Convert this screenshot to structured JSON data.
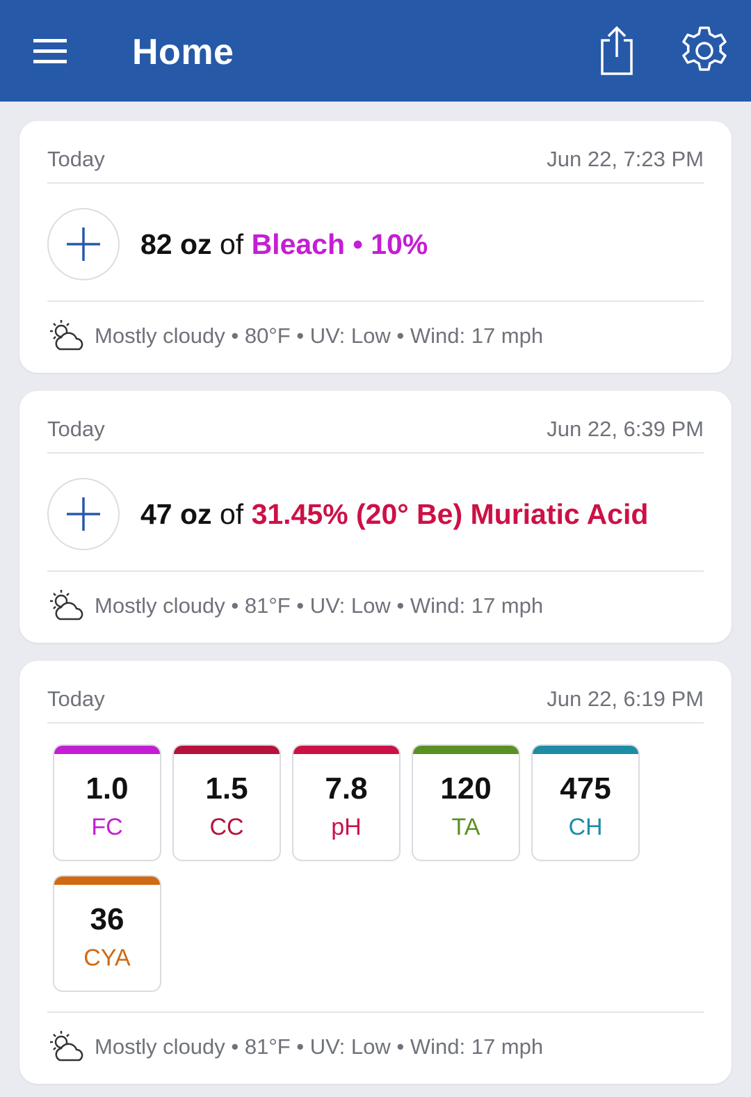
{
  "appbar": {
    "title": "Home",
    "menu_icon": "hamburger-icon",
    "share_icon": "share-icon",
    "settings_icon": "gear-icon"
  },
  "cards": [
    {
      "day": "Today",
      "timestamp": "Jun 22, 7:23 PM",
      "dose": {
        "amount": "82 oz",
        "of": "of",
        "chemical": "Bleach • 10%",
        "chem_color": "#c41ed4"
      },
      "weather": "Mostly cloudy • 80°F • UV: Low • Wind: 17 mph"
    },
    {
      "day": "Today",
      "timestamp": "Jun 22, 6:39 PM",
      "dose": {
        "amount": "47 oz",
        "of": "of",
        "chemical": "31.45% (20° Be) Muriatic Acid",
        "chem_color": "#cc1147"
      },
      "weather": "Mostly cloudy • 81°F • UV: Low • Wind: 17 mph"
    },
    {
      "day": "Today",
      "timestamp": "Jun 22, 6:19 PM",
      "readings": [
        {
          "value": "1.0",
          "label": "FC",
          "color": "#c41ed4"
        },
        {
          "value": "1.5",
          "label": "CC",
          "color": "#b5123c"
        },
        {
          "value": "7.8",
          "label": "pH",
          "color": "#cc1147"
        },
        {
          "value": "120",
          "label": "TA",
          "color": "#5b9022"
        },
        {
          "value": "475",
          "label": "CH",
          "color": "#1e8ca5"
        },
        {
          "value": "36",
          "label": "CYA",
          "color": "#cf6a12"
        }
      ],
      "weather": "Mostly cloudy • 81°F • UV: Low • Wind: 17 mph"
    }
  ]
}
